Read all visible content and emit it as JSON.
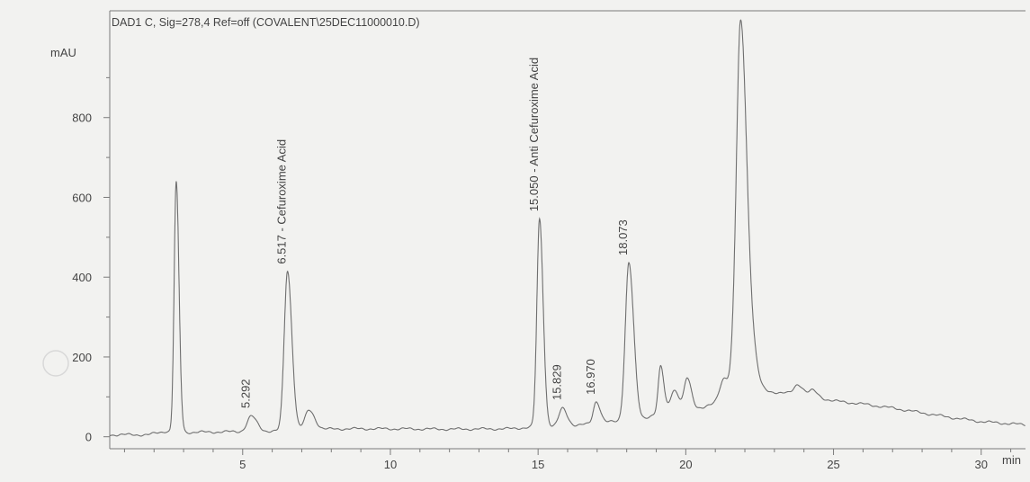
{
  "chart_data": {
    "type": "line",
    "title": "DAD1 C, Sig=278,4 Ref=off (COVALENT\\25DEC11000010.D)",
    "ylabel": "mAU",
    "xlabel": "min",
    "xlim": [
      0.5,
      31.5
    ],
    "ylim": [
      -30,
      1000
    ],
    "x_ticks": [
      5,
      10,
      15,
      20,
      25,
      30
    ],
    "y_ticks": [
      0,
      200,
      400,
      600,
      800
    ],
    "peaks": [
      {
        "rt": 2.75,
        "height": 625,
        "width": 0.07,
        "label": ""
      },
      {
        "rt": 5.292,
        "height": 38,
        "width": 0.14,
        "label": "5.292"
      },
      {
        "rt": 6.517,
        "height": 400,
        "width": 0.11,
        "label": "6.517 - Cefuroxime Acid"
      },
      {
        "rt": 7.25,
        "height": 48,
        "width": 0.14,
        "label": ""
      },
      {
        "rt": 15.05,
        "height": 520,
        "width": 0.09,
        "label": "15.050 - Anti Cefuroxime Acid"
      },
      {
        "rt": 15.829,
        "height": 45,
        "width": 0.12,
        "label": "15.829"
      },
      {
        "rt": 16.97,
        "height": 55,
        "width": 0.1,
        "label": "16.970"
      },
      {
        "rt": 18.073,
        "height": 395,
        "width": 0.12,
        "label": "18.073"
      },
      {
        "rt": 19.15,
        "height": 115,
        "width": 0.08,
        "label": ""
      },
      {
        "rt": 19.6,
        "height": 50,
        "width": 0.12,
        "label": ""
      },
      {
        "rt": 20.05,
        "height": 75,
        "width": 0.1,
        "label": ""
      },
      {
        "rt": 21.3,
        "height": 60,
        "width": 0.15,
        "label": ""
      },
      {
        "rt": 21.65,
        "height": 90,
        "width": 0.1,
        "label": ""
      },
      {
        "rt": 21.85,
        "height": 840,
        "width": 0.13,
        "label": ""
      },
      {
        "rt": 22.1,
        "height": 200,
        "width": 0.16,
        "label": ""
      },
      {
        "rt": 23.8,
        "height": 25,
        "width": 0.13,
        "label": ""
      },
      {
        "rt": 24.3,
        "height": 15,
        "width": 0.12,
        "label": ""
      }
    ],
    "baseline": [
      [
        0.5,
        5
      ],
      [
        1.8,
        5
      ],
      [
        2.4,
        14
      ],
      [
        3.1,
        11
      ],
      [
        5.0,
        13
      ],
      [
        6.0,
        14
      ],
      [
        7.0,
        18
      ],
      [
        8.5,
        20
      ],
      [
        10.0,
        20
      ],
      [
        12.0,
        19
      ],
      [
        14.0,
        20
      ],
      [
        15.2,
        26
      ],
      [
        16.0,
        26
      ],
      [
        17.0,
        34
      ],
      [
        18.5,
        44
      ],
      [
        19.0,
        58
      ],
      [
        19.6,
        68
      ],
      [
        20.6,
        74
      ],
      [
        21.4,
        90
      ],
      [
        21.8,
        110
      ],
      [
        22.5,
        115
      ],
      [
        23.0,
        112
      ],
      [
        24.0,
        105
      ],
      [
        25.0,
        90
      ],
      [
        26.0,
        82
      ],
      [
        27.0,
        72
      ],
      [
        28.0,
        60
      ],
      [
        29.0,
        48
      ],
      [
        30.0,
        38
      ],
      [
        31.5,
        30
      ]
    ]
  }
}
